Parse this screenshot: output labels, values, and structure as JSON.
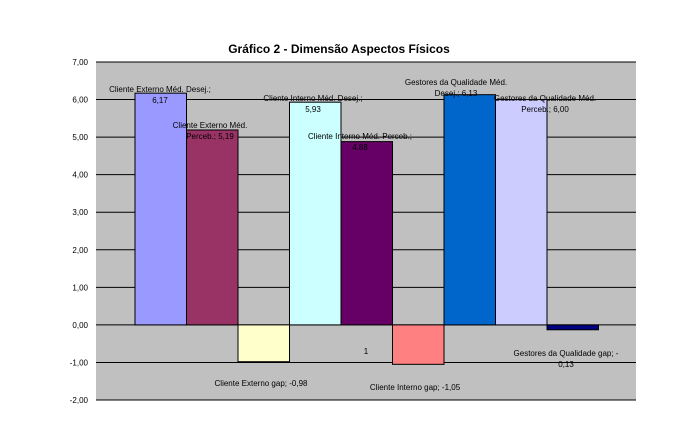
{
  "chart_data": {
    "type": "bar",
    "title": "Gráfico 2 - Dimensão Aspectos Físicos",
    "xlabel": "",
    "ylabel": "",
    "ylim": [
      -2,
      7
    ],
    "y_ticks": [
      "7,00",
      "6,00",
      "5,00",
      "4,00",
      "3,00",
      "2,00",
      "1,00",
      "0,00",
      "-1,00",
      "-2,00"
    ],
    "y_tick_values": [
      7,
      6,
      5,
      4,
      3,
      2,
      1,
      0,
      -1,
      -2
    ],
    "grid": true,
    "plot_background": "#c0c0c0",
    "category_axis_label": "1",
    "bars": [
      {
        "value": 6.17,
        "color": "#9999ff",
        "label_lines": [
          "Cliente Externo Méd. Desej.;",
          "6,17"
        ]
      },
      {
        "value": 5.19,
        "color": "#993366",
        "label_lines": [
          "Cliente Externo Méd.",
          "Perceb.; 5,19"
        ]
      },
      {
        "value": -0.98,
        "color": "#ffffcc",
        "label_lines": [
          "Cliente Externo gap; -0,98"
        ]
      },
      {
        "value": 5.93,
        "color": "#ccffff",
        "label_lines": [
          "Cliente Interno Méd. Desej.;",
          "5,93"
        ]
      },
      {
        "value": 4.88,
        "color": "#660066",
        "label_lines": [
          "Cliente Interno Méd. Perceb.;",
          "4,88"
        ]
      },
      {
        "value": -1.05,
        "color": "#ff8080",
        "label_lines": [
          "Cliente Interno gap; -1,05"
        ]
      },
      {
        "value": 6.13,
        "color": "#0066cc",
        "label_lines": [
          "Gestores da Qualidade Méd.",
          "Desej.; 6,13"
        ]
      },
      {
        "value": 6.0,
        "color": "#ccccff",
        "label_lines": [
          "Gestores da Qualidade Méd.",
          "Perceb.; 6,00"
        ]
      },
      {
        "value": -0.13,
        "color": "#000080",
        "label_lines": [
          "Gestores da Qualidade gap; -",
          "0,13"
        ]
      }
    ]
  }
}
